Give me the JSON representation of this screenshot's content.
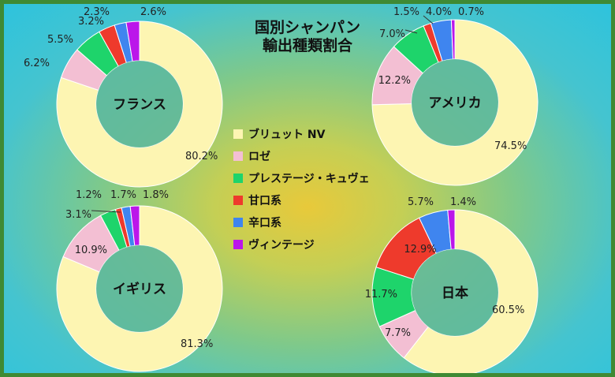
{
  "chart_data": {
    "type": "pie",
    "title": [
      "国別シャンパン",
      "輸出種類割合"
    ],
    "legend": {
      "placement": "center",
      "entries": [
        "ブリュット NV",
        "ロゼ",
        "プレステージ・キュヴェ",
        "甘口系",
        "辛口系",
        "ヴィンテージ"
      ],
      "colors": [
        "#fdf5b2",
        "#f3bfd3",
        "#1ed46b",
        "#ee3a2c",
        "#3f85ef",
        "#bb16ea"
      ]
    },
    "charts": [
      {
        "name": "フランス",
        "values": [
          80.2,
          6.2,
          5.5,
          3.2,
          2.3,
          2.6
        ],
        "labels": [
          "80.2%",
          "6.2%",
          "5.5%",
          "3.2%",
          "2.3%",
          "2.6%"
        ]
      },
      {
        "name": "アメリカ",
        "values": [
          74.5,
          12.2,
          7.0,
          1.5,
          4.0,
          0.7
        ],
        "labels": [
          "74.5%",
          "12.2%",
          "7.0%",
          "1.5%",
          "4.0%",
          "0.7%"
        ]
      },
      {
        "name": "イギリス",
        "values": [
          81.3,
          10.9,
          3.1,
          1.2,
          1.7,
          1.8
        ],
        "labels": [
          "81.3%",
          "10.9%",
          "3.1%",
          "1.2%",
          "1.7%",
          "1.8%"
        ]
      },
      {
        "name": "日本",
        "values": [
          60.5,
          7.7,
          11.7,
          12.9,
          5.7,
          1.4
        ],
        "labels": [
          "60.5%",
          "7.7%",
          "11.7%",
          "12.9%",
          "5.7%",
          "1.4%"
        ]
      }
    ]
  }
}
